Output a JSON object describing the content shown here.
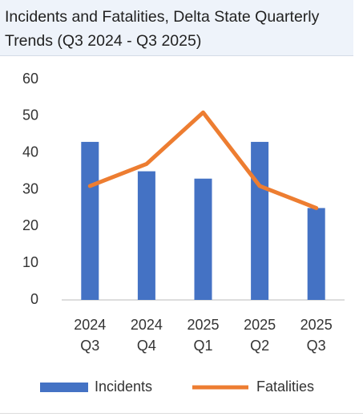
{
  "chart_data": {
    "type": "bar-line",
    "title": "Incidents and Fatalities, Delta State Quarterly Trends (Q3 2024 - Q3 2025)",
    "categories": [
      "2024 Q3",
      "2024 Q4",
      "2025 Q1",
      "2025 Q2",
      "2025 Q3"
    ],
    "series": [
      {
        "name": "Incidents",
        "type": "bar",
        "color": "#4472c4",
        "values": [
          43,
          35,
          33,
          43,
          25
        ]
      },
      {
        "name": "Fatalities",
        "type": "line",
        "color": "#ed7d31",
        "values": [
          31,
          37,
          51,
          31,
          25
        ]
      }
    ],
    "ylim": [
      0,
      60
    ],
    "yticks": [
      0,
      10,
      20,
      30,
      40,
      50,
      60
    ],
    "grid": false,
    "legend": "bottom"
  }
}
